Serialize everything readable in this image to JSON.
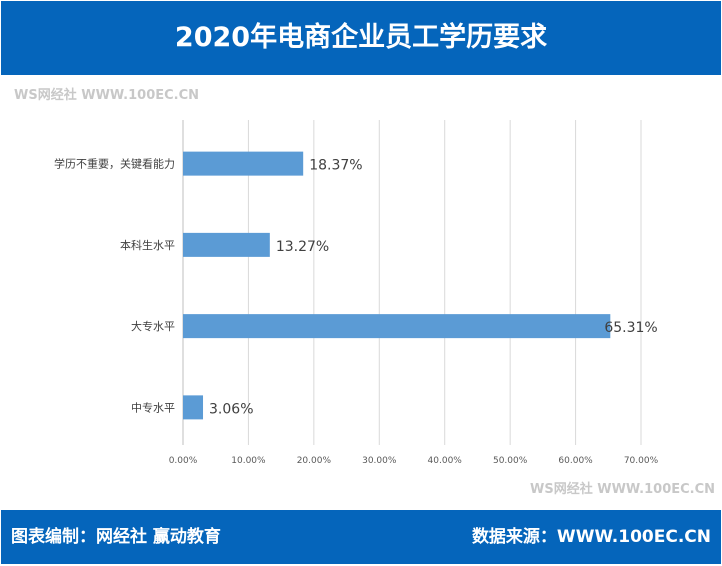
{
  "header": {
    "title": "2020年电商企业员工学历要求"
  },
  "footer": {
    "credit": "图表编制：网经社  赢动教育",
    "source": "数据来源：WWW.100EC.CN"
  },
  "watermark": "WS网经社 WWW.100EC.CN",
  "chart_data": {
    "type": "bar",
    "orientation": "horizontal",
    "title": "2020年电商企业员工学历要求",
    "categories": [
      "学历不重要，关键看能力",
      "本科生水平",
      "大专水平",
      "中专水平"
    ],
    "values": [
      18.37,
      13.27,
      65.31,
      3.06
    ],
    "value_labels": [
      "18.37%",
      "13.27%",
      "65.31%",
      "3.06%"
    ],
    "xlim": [
      0,
      70
    ],
    "xticks": [
      "0.00%",
      "10.00%",
      "20.00%",
      "30.00%",
      "40.00%",
      "50.00%",
      "60.00%",
      "70.00%"
    ],
    "grid": true,
    "bar_color": "#5b9bd5"
  }
}
